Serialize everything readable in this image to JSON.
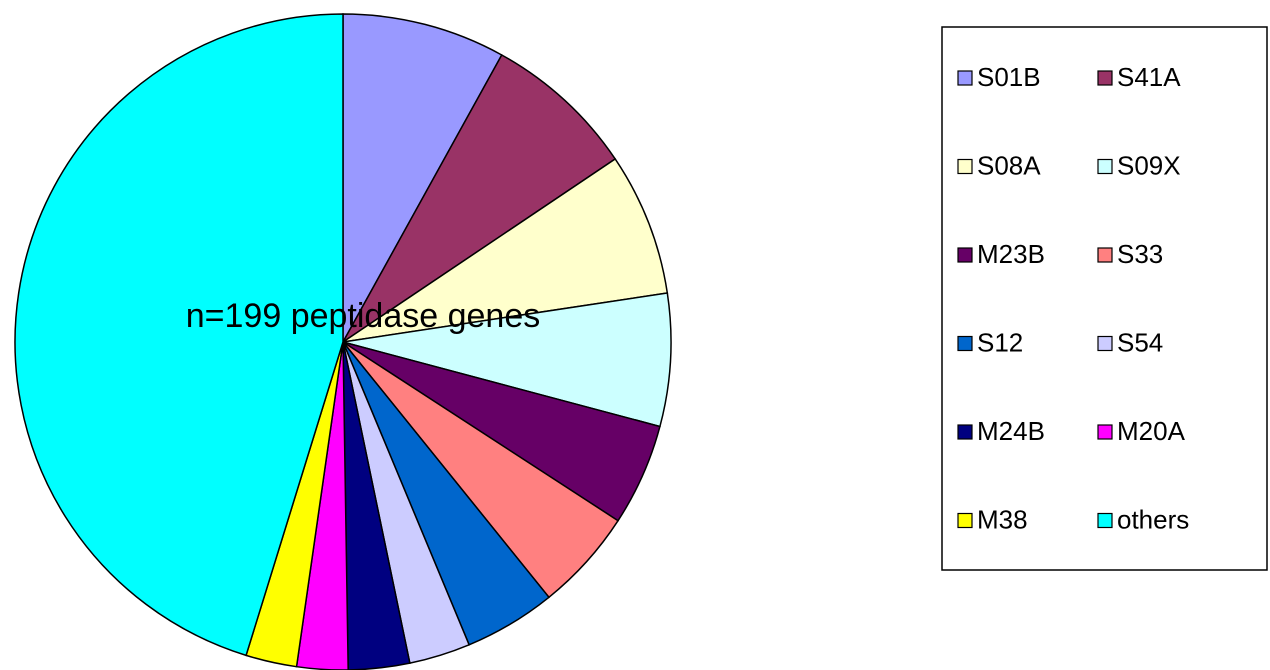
{
  "chart_data": {
    "type": "pie",
    "annotation": "n=199 peptidase genes",
    "categories": [
      "S01B",
      "S41A",
      "S08A",
      "S09X",
      "M23B",
      "S33",
      "S12",
      "S54",
      "M24B",
      "M20A",
      "M38",
      "others"
    ],
    "values": [
      16,
      15,
      14,
      13,
      10,
      10,
      9,
      6,
      6,
      5,
      5,
      90
    ],
    "colors": [
      "#9999ff",
      "#993366",
      "#ffffcc",
      "#ccffff",
      "#660066",
      "#ff8080",
      "#0066cc",
      "#ccccff",
      "#000080",
      "#ff00ff",
      "#ffff00",
      "#00ffff"
    ],
    "legend": "right"
  }
}
